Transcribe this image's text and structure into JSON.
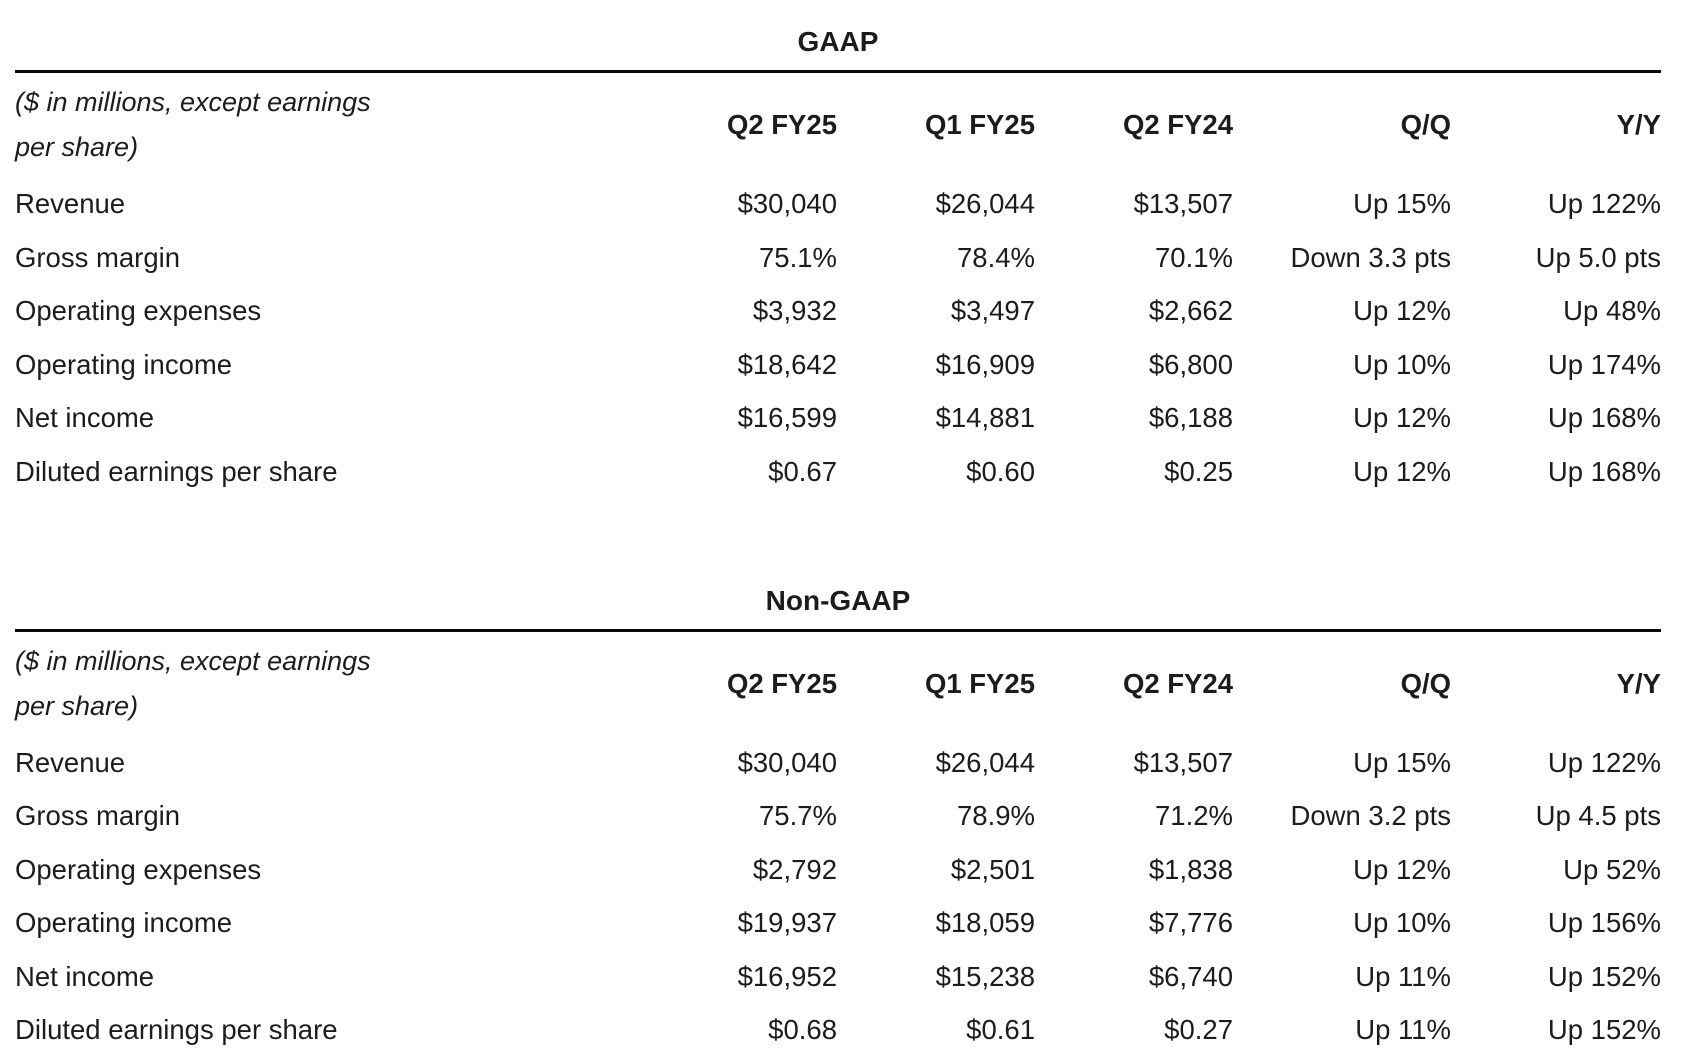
{
  "page": {
    "background": "#ffffff",
    "text_color": "#1c1c1c",
    "rule_color": "#0a0a0a"
  },
  "tables": [
    {
      "title": "GAAP",
      "unit_note_line1": "($ in millions, except earnings",
      "unit_note_line2": "per share)",
      "columns": [
        "Q2 FY25",
        "Q1 FY25",
        "Q2 FY24",
        "Q/Q",
        "Y/Y"
      ],
      "rows": [
        {
          "label": "Revenue",
          "values": [
            "$30,040",
            "$26,044",
            "$13,507",
            "Up 15%",
            "Up 122%"
          ]
        },
        {
          "label": "Gross margin",
          "values": [
            "75.1%",
            "78.4%",
            "70.1%",
            "Down 3.3 pts",
            "Up 5.0 pts"
          ]
        },
        {
          "label": "Operating expenses",
          "values": [
            "$3,932",
            "$3,497",
            "$2,662",
            "Up 12%",
            "Up 48%"
          ]
        },
        {
          "label": "Operating income",
          "values": [
            "$18,642",
            "$16,909",
            "$6,800",
            "Up 10%",
            "Up 174%"
          ]
        },
        {
          "label": "Net income",
          "values": [
            "$16,599",
            "$14,881",
            "$6,188",
            "Up 12%",
            "Up 168%"
          ]
        },
        {
          "label": "Diluted earnings per share",
          "values": [
            "$0.67",
            "$0.60",
            "$0.25",
            "Up 12%",
            "Up 168%"
          ]
        }
      ]
    },
    {
      "title": "Non-GAAP",
      "unit_note_line1": "($ in millions, except earnings",
      "unit_note_line2": "per share)",
      "columns": [
        "Q2 FY25",
        "Q1 FY25",
        "Q2 FY24",
        "Q/Q",
        "Y/Y"
      ],
      "rows": [
        {
          "label": "Revenue",
          "values": [
            "$30,040",
            "$26,044",
            "$13,507",
            "Up 15%",
            "Up 122%"
          ]
        },
        {
          "label": "Gross margin",
          "values": [
            "75.7%",
            "78.9%",
            "71.2%",
            "Down 3.2 pts",
            "Up 4.5 pts"
          ]
        },
        {
          "label": "Operating expenses",
          "values": [
            "$2,792",
            "$2,501",
            "$1,838",
            "Up 12%",
            "Up 52%"
          ]
        },
        {
          "label": "Operating income",
          "values": [
            "$19,937",
            "$18,059",
            "$7,776",
            "Up 10%",
            "Up 156%"
          ]
        },
        {
          "label": "Net income",
          "values": [
            "$16,952",
            "$15,238",
            "$6,740",
            "Up 11%",
            "Up 152%"
          ]
        },
        {
          "label": "Diluted earnings per share",
          "values": [
            "$0.68",
            "$0.61",
            "$0.27",
            "Up 11%",
            "Up 152%"
          ]
        }
      ]
    }
  ]
}
